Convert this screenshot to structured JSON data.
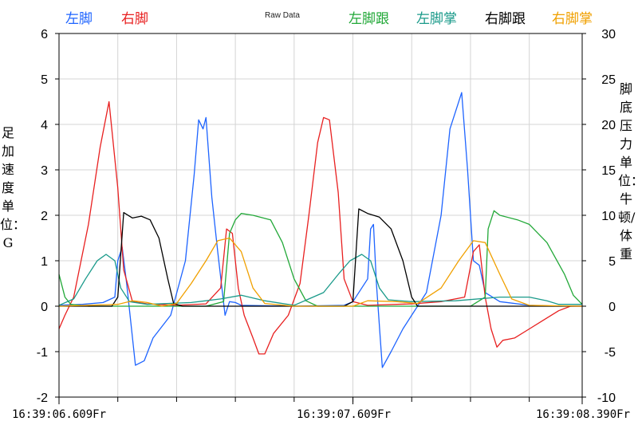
{
  "chart_data": {
    "type": "line",
    "title": "Raw Data",
    "legend": [
      {
        "name": "左脚",
        "color": "#1e64ff"
      },
      {
        "name": "右脚",
        "color": "#e82020"
      },
      {
        "name": "左脚跟",
        "color": "#22a838"
      },
      {
        "name": "左脚掌",
        "color": "#1a9a8a"
      },
      {
        "name": "右脚跟",
        "color": "#000000"
      },
      {
        "name": "右脚掌",
        "color": "#f0a000"
      }
    ],
    "left_axis": {
      "label": "足加速度 单位：G",
      "ylim": [
        -2,
        6
      ],
      "ticks": [
        "-2",
        "-1",
        "0",
        "1",
        "2",
        "3",
        "4",
        "5",
        "6"
      ]
    },
    "right_axis": {
      "label": "脚底压力 单位：牛顿/体重",
      "ylim": [
        -10,
        30
      ],
      "ticks": [
        "-10",
        "-5",
        "0",
        "5",
        "10",
        "15",
        "20",
        "25",
        "30"
      ]
    },
    "x_axis": {
      "unit": "seconds",
      "xlim": [
        0,
        1.78
      ],
      "tick_labels": [
        {
          "t": 0,
          "text": "16:39:06.609Fr"
        },
        {
          "t": 1.0,
          "text": "16:39:07.609Fr"
        },
        {
          "t": 1.78,
          "text": "16:39:08.390Fr"
        }
      ]
    },
    "grid": true,
    "series": [
      {
        "name": "左脚",
        "axis": "left",
        "color": "#1e64ff",
        "points": [
          [
            0,
            0.02
          ],
          [
            0.08,
            0.04
          ],
          [
            0.15,
            0.08
          ],
          [
            0.19,
            0.2
          ],
          [
            0.2,
            1.0
          ],
          [
            0.215,
            1.3
          ],
          [
            0.23,
            0.5
          ],
          [
            0.26,
            -1.3
          ],
          [
            0.29,
            -1.2
          ],
          [
            0.32,
            -0.7
          ],
          [
            0.38,
            -0.2
          ],
          [
            0.43,
            1.0
          ],
          [
            0.46,
            2.9
          ],
          [
            0.475,
            4.1
          ],
          [
            0.49,
            3.9
          ],
          [
            0.5,
            4.15
          ],
          [
            0.52,
            2.4
          ],
          [
            0.54,
            1.2
          ],
          [
            0.565,
            -0.2
          ],
          [
            0.58,
            0.1
          ],
          [
            0.6,
            0.08
          ],
          [
            0.62,
            0.02
          ],
          [
            0.8,
            0.0
          ],
          [
            0.97,
            0.02
          ],
          [
            1.0,
            0.1
          ],
          [
            1.05,
            0.6
          ],
          [
            1.06,
            1.7
          ],
          [
            1.07,
            1.8
          ],
          [
            1.08,
            0.5
          ],
          [
            1.1,
            -1.35
          ],
          [
            1.13,
            -1.0
          ],
          [
            1.17,
            -0.5
          ],
          [
            1.2,
            -0.2
          ],
          [
            1.25,
            0.3
          ],
          [
            1.3,
            2.0
          ],
          [
            1.33,
            3.9
          ],
          [
            1.37,
            4.7
          ],
          [
            1.39,
            3.0
          ],
          [
            1.41,
            1.0
          ],
          [
            1.43,
            0.9
          ],
          [
            1.45,
            0.3
          ],
          [
            1.5,
            0.1
          ],
          [
            1.6,
            0.02
          ],
          [
            1.7,
            0.0
          ],
          [
            1.78,
            0.0
          ]
        ]
      },
      {
        "name": "右脚",
        "axis": "left",
        "color": "#e82020",
        "points": [
          [
            0,
            -0.5
          ],
          [
            0.02,
            -0.2
          ],
          [
            0.05,
            0.2
          ],
          [
            0.1,
            1.8
          ],
          [
            0.14,
            3.5
          ],
          [
            0.17,
            4.5
          ],
          [
            0.2,
            2.6
          ],
          [
            0.22,
            0.8
          ],
          [
            0.25,
            0.1
          ],
          [
            0.3,
            0.05
          ],
          [
            0.4,
            0.02
          ],
          [
            0.5,
            0.05
          ],
          [
            0.55,
            0.4
          ],
          [
            0.57,
            1.7
          ],
          [
            0.59,
            1.6
          ],
          [
            0.61,
            0.4
          ],
          [
            0.63,
            -0.2
          ],
          [
            0.66,
            -0.7
          ],
          [
            0.68,
            -1.05
          ],
          [
            0.7,
            -1.05
          ],
          [
            0.73,
            -0.6
          ],
          [
            0.78,
            -0.2
          ],
          [
            0.82,
            0.5
          ],
          [
            0.85,
            2.0
          ],
          [
            0.88,
            3.6
          ],
          [
            0.9,
            4.15
          ],
          [
            0.92,
            4.1
          ],
          [
            0.95,
            2.5
          ],
          [
            0.97,
            0.6
          ],
          [
            1.0,
            0.1
          ],
          [
            1.05,
            0.02
          ],
          [
            1.2,
            0.05
          ],
          [
            1.3,
            0.1
          ],
          [
            1.38,
            0.2
          ],
          [
            1.41,
            1.2
          ],
          [
            1.43,
            1.35
          ],
          [
            1.45,
            0.2
          ],
          [
            1.47,
            -0.5
          ],
          [
            1.49,
            -0.9
          ],
          [
            1.51,
            -0.75
          ],
          [
            1.55,
            -0.7
          ],
          [
            1.6,
            -0.5
          ],
          [
            1.65,
            -0.3
          ],
          [
            1.7,
            -0.1
          ],
          [
            1.74,
            0.0
          ],
          [
            1.78,
            0.0
          ]
        ]
      },
      {
        "name": "左脚跟",
        "axis": "right",
        "color": "#22a838",
        "points": [
          [
            0,
            3.5
          ],
          [
            0.02,
            1.0
          ],
          [
            0.04,
            0.2
          ],
          [
            0.1,
            0.0
          ],
          [
            0.3,
            0.0
          ],
          [
            0.5,
            0.0
          ],
          [
            0.56,
            0.5
          ],
          [
            0.58,
            8.0
          ],
          [
            0.6,
            9.5
          ],
          [
            0.62,
            10.2
          ],
          [
            0.66,
            10.0
          ],
          [
            0.72,
            9.5
          ],
          [
            0.76,
            7.0
          ],
          [
            0.8,
            3.0
          ],
          [
            0.84,
            0.6
          ],
          [
            0.88,
            0.0
          ],
          [
            1.1,
            0.0
          ],
          [
            1.4,
            0.0
          ],
          [
            1.45,
            1.0
          ],
          [
            1.46,
            8.5
          ],
          [
            1.48,
            10.5
          ],
          [
            1.5,
            10.0
          ],
          [
            1.56,
            9.5
          ],
          [
            1.6,
            9.0
          ],
          [
            1.66,
            7.0
          ],
          [
            1.72,
            3.5
          ],
          [
            1.75,
            1.2
          ],
          [
            1.78,
            0.2
          ]
        ]
      },
      {
        "name": "左脚掌",
        "axis": "right",
        "color": "#1a9a8a",
        "points": [
          [
            0,
            0.1
          ],
          [
            0.05,
            0.8
          ],
          [
            0.09,
            3.0
          ],
          [
            0.13,
            5.0
          ],
          [
            0.16,
            5.7
          ],
          [
            0.19,
            5.0
          ],
          [
            0.21,
            2.0
          ],
          [
            0.24,
            0.5
          ],
          [
            0.3,
            0.2
          ],
          [
            0.45,
            0.4
          ],
          [
            0.55,
            0.8
          ],
          [
            0.62,
            1.2
          ],
          [
            0.7,
            0.6
          ],
          [
            0.8,
            0.1
          ],
          [
            0.9,
            1.5
          ],
          [
            0.95,
            3.5
          ],
          [
            0.99,
            5.0
          ],
          [
            1.03,
            5.7
          ],
          [
            1.06,
            5.0
          ],
          [
            1.09,
            2.0
          ],
          [
            1.12,
            0.7
          ],
          [
            1.2,
            0.5
          ],
          [
            1.35,
            0.6
          ],
          [
            1.5,
            1.0
          ],
          [
            1.6,
            1.0
          ],
          [
            1.66,
            0.6
          ],
          [
            1.7,
            0.2
          ],
          [
            1.78,
            0.2
          ]
        ]
      },
      {
        "name": "右脚跟",
        "axis": "right",
        "color": "#000000",
        "points": [
          [
            0,
            0.0
          ],
          [
            0.1,
            0.0
          ],
          [
            0.18,
            0.0
          ],
          [
            0.2,
            1.0
          ],
          [
            0.22,
            10.3
          ],
          [
            0.25,
            9.7
          ],
          [
            0.28,
            9.9
          ],
          [
            0.31,
            9.5
          ],
          [
            0.34,
            7.5
          ],
          [
            0.37,
            3.0
          ],
          [
            0.39,
            0.3
          ],
          [
            0.42,
            0.0
          ],
          [
            0.8,
            0.0
          ],
          [
            0.97,
            0.0
          ],
          [
            1.0,
            0.5
          ],
          [
            1.02,
            10.7
          ],
          [
            1.05,
            10.2
          ],
          [
            1.09,
            9.8
          ],
          [
            1.13,
            8.5
          ],
          [
            1.17,
            5.0
          ],
          [
            1.2,
            1.0
          ],
          [
            1.22,
            0.0
          ],
          [
            1.78,
            0.0
          ]
        ]
      },
      {
        "name": "右脚掌",
        "axis": "right",
        "color": "#f0a000",
        "points": [
          [
            0,
            0.0
          ],
          [
            0.2,
            0.2
          ],
          [
            0.25,
            0.6
          ],
          [
            0.3,
            0.4
          ],
          [
            0.35,
            0.0
          ],
          [
            0.4,
            0.3
          ],
          [
            0.45,
            2.5
          ],
          [
            0.5,
            5.0
          ],
          [
            0.54,
            7.2
          ],
          [
            0.58,
            7.5
          ],
          [
            0.62,
            6.0
          ],
          [
            0.66,
            2.0
          ],
          [
            0.7,
            0.3
          ],
          [
            0.8,
            0.0
          ],
          [
            1.0,
            0.0
          ],
          [
            1.05,
            0.6
          ],
          [
            1.15,
            0.5
          ],
          [
            1.22,
            0.3
          ],
          [
            1.3,
            2.0
          ],
          [
            1.36,
            5.0
          ],
          [
            1.41,
            7.2
          ],
          [
            1.45,
            7.0
          ],
          [
            1.5,
            3.5
          ],
          [
            1.54,
            0.8
          ],
          [
            1.6,
            0.1
          ],
          [
            1.78,
            0.0
          ]
        ]
      }
    ]
  }
}
